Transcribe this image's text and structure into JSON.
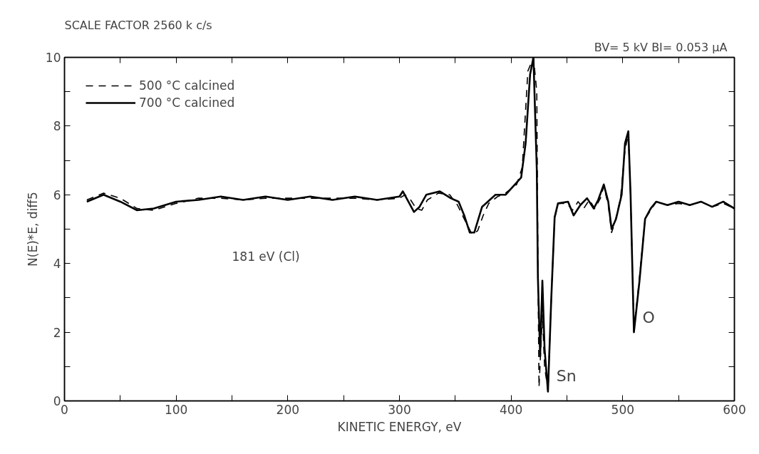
{
  "chart_data": {
    "type": "line",
    "title": "SCALE FACTOR 2560 k c/s",
    "subtitle": "BV= 5 kV   BI= 0.053 μA",
    "xlabel": "KINETIC ENERGY, eV",
    "ylabel": "N(E)*E, diff5",
    "xlim": [
      0,
      600
    ],
    "ylim": [
      0,
      10
    ],
    "xticks": [
      0,
      {
        "value": 50,
        "label": null
      },
      100,
      {
        "value": 150,
        "label": null
      },
      200,
      {
        "value": 250,
        "label": null
      },
      300,
      {
        "value": 350,
        "label": null
      },
      400,
      {
        "value": 450,
        "label": null
      },
      500,
      {
        "value": 550,
        "label": null
      },
      600
    ],
    "yticks": [
      0,
      {
        "value": 1,
        "label": null
      },
      2,
      {
        "value": 3,
        "label": null
      },
      4,
      {
        "value": 5,
        "label": null
      },
      6,
      {
        "value": 7,
        "label": null
      },
      8,
      {
        "value": 9,
        "label": null
      },
      10
    ],
    "grid": false,
    "legend": "top left",
    "marker": "none",
    "annotations": [
      "181 eV (Cl)",
      {
        "text": "Sn",
        "x": 433,
        "y": 0.3
      },
      {
        "text": "O",
        "x": 510,
        "y": 2.0
      }
    ],
    "series": [
      {
        "name": "500 °C calcined",
        "color": "#000000",
        "line_style": "dashed",
        "x": [
          20,
          35,
          50,
          65,
          80,
          100,
          120,
          140,
          160,
          180,
          200,
          220,
          240,
          260,
          280,
          300,
          305,
          310,
          315,
          320,
          325,
          335,
          345,
          352,
          358,
          365,
          370,
          375,
          380,
          388,
          395,
          405,
          410,
          415,
          420,
          423,
          424,
          425,
          428,
          430,
          433,
          436,
          439,
          442,
          450,
          455,
          460,
          465,
          470,
          475,
          480,
          483,
          487,
          490,
          493,
          498,
          502,
          505,
          507,
          510,
          515,
          520,
          525,
          530,
          540,
          550,
          560,
          570,
          580,
          590,
          600
        ],
        "values": [
          5.85,
          6.05,
          5.9,
          5.6,
          5.55,
          5.75,
          5.9,
          5.9,
          5.85,
          5.9,
          5.9,
          5.9,
          5.9,
          5.9,
          5.85,
          5.9,
          6.0,
          5.85,
          5.6,
          5.55,
          5.85,
          6.05,
          6.0,
          5.7,
          5.3,
          4.85,
          4.95,
          5.4,
          5.75,
          5.95,
          6.05,
          6.3,
          6.8,
          9.6,
          10.0,
          9.0,
          4.0,
          0.4,
          2.5,
          1.0,
          0.3,
          3.0,
          5.3,
          5.75,
          5.75,
          5.55,
          5.8,
          5.6,
          5.85,
          5.6,
          5.9,
          6.25,
          5.7,
          4.9,
          5.2,
          5.9,
          7.3,
          7.75,
          6.0,
          2.05,
          3.6,
          5.3,
          5.55,
          5.8,
          5.7,
          5.75,
          5.7,
          5.8,
          5.65,
          5.75,
          5.6
        ]
      },
      {
        "name": "700 °C calcined",
        "color": "#000000",
        "line_style": "solid",
        "x": [
          20,
          35,
          50,
          65,
          80,
          100,
          120,
          140,
          160,
          180,
          200,
          220,
          240,
          260,
          280,
          300,
          303,
          308,
          313,
          318,
          324,
          336,
          346,
          353,
          358,
          363,
          367,
          374,
          386,
          395,
          409,
          413,
          417,
          420,
          423,
          424,
          426,
          428,
          430,
          433,
          436,
          439,
          442,
          451,
          456,
          462,
          468,
          474,
          478,
          483,
          487,
          490,
          494,
          499,
          502,
          505,
          507,
          510,
          515,
          520,
          525,
          530,
          540,
          550,
          560,
          570,
          580,
          590,
          600
        ],
        "values": [
          5.8,
          6.0,
          5.8,
          5.55,
          5.6,
          5.8,
          5.85,
          5.95,
          5.85,
          5.95,
          5.85,
          5.95,
          5.85,
          5.95,
          5.85,
          5.95,
          6.1,
          5.8,
          5.5,
          5.65,
          6.0,
          6.1,
          5.9,
          5.8,
          5.4,
          4.9,
          4.9,
          5.65,
          6.0,
          6.0,
          6.5,
          7.5,
          9.5,
          10.0,
          6.75,
          3.6,
          1.3,
          3.5,
          1.5,
          0.27,
          3.0,
          5.35,
          5.75,
          5.8,
          5.4,
          5.7,
          5.9,
          5.6,
          5.85,
          6.3,
          5.8,
          5.0,
          5.3,
          6.0,
          7.5,
          7.85,
          6.0,
          2.0,
          3.5,
          5.3,
          5.6,
          5.8,
          5.7,
          5.8,
          5.7,
          5.8,
          5.65,
          5.8,
          5.6
        ]
      }
    ]
  }
}
